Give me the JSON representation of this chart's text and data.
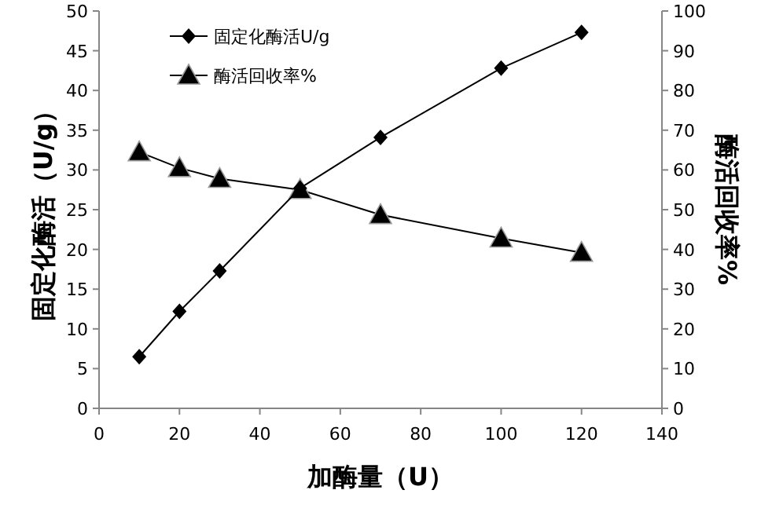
{
  "chart_data": {
    "type": "line",
    "xlabel": "加酶量（U）",
    "ylabel": "固定化酶活（U/g）",
    "y2label": "酶活回收率%",
    "x": [
      10,
      20,
      30,
      50,
      70,
      100,
      120
    ],
    "xlim": [
      0,
      140
    ],
    "xticks": [
      0,
      20,
      40,
      60,
      80,
      100,
      120,
      140
    ],
    "ylim": [
      0,
      50
    ],
    "yticks": [
      0,
      5,
      10,
      15,
      20,
      25,
      30,
      35,
      40,
      45,
      50
    ],
    "y2lim": [
      0,
      100
    ],
    "y2ticks": [
      0,
      10,
      20,
      30,
      40,
      50,
      60,
      70,
      80,
      90,
      100
    ],
    "legend": "top left",
    "grid": false,
    "line_style": "solid",
    "series": [
      {
        "name": "固定化酶活U/g",
        "color": "#000000",
        "marker": "diamond",
        "values": [
          6.5,
          12.2,
          17.3,
          27.7,
          34.1,
          42.8,
          47.3
        ]
      },
      {
        "name": "酶活回收率%",
        "color": "#000000",
        "marker": "triangle",
        "axis": "y2",
        "values": [
          64.5,
          60.5,
          57.8,
          55,
          48.7,
          42.8,
          39.2
        ]
      }
    ]
  }
}
